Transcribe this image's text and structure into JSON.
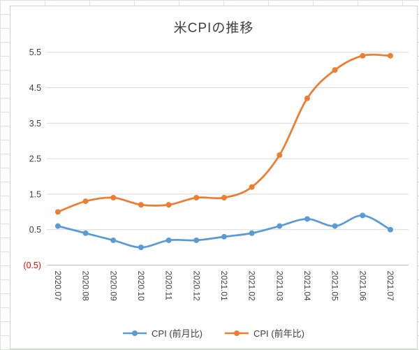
{
  "spreadsheet": {
    "gridline_color": "#d9e2d6"
  },
  "chart_data": {
    "type": "line",
    "title": "米CPIの推移",
    "categories": [
      "2020.07",
      "2020.08",
      "2020.09",
      "2020.10",
      "2020.11",
      "2020.12",
      "2021.01",
      "2021.02",
      "2021.03",
      "2021.04",
      "2021.05",
      "2021.06",
      "2021.07"
    ],
    "series": [
      {
        "name": "CPI (前月比)",
        "color": "#5B9BD5",
        "values": [
          0.6,
          0.4,
          0.2,
          0.0,
          0.2,
          0.2,
          0.3,
          0.4,
          0.6,
          0.8,
          0.6,
          0.9,
          0.5
        ]
      },
      {
        "name": "CPI (前年比)",
        "color": "#ED7D31",
        "values": [
          1.0,
          1.3,
          1.4,
          1.2,
          1.2,
          1.4,
          1.4,
          1.7,
          2.6,
          4.2,
          5.0,
          5.4,
          5.4
        ]
      }
    ],
    "ylim": [
      -0.5,
      5.5
    ],
    "yticks": [
      {
        "value": 5.5,
        "label": "5.5"
      },
      {
        "value": 4.5,
        "label": "4.5"
      },
      {
        "value": 3.5,
        "label": "3.5"
      },
      {
        "value": 2.5,
        "label": "2.5"
      },
      {
        "value": 1.5,
        "label": "1.5"
      },
      {
        "value": 0.5,
        "label": "0.5"
      },
      {
        "value": -0.5,
        "label": "(0.5)",
        "color": "#FF0000"
      }
    ],
    "axis_label_color": "#404040",
    "gridline_color": "#d9d9d9",
    "axis_line_color": "#bfbfbf",
    "grid": true,
    "smoothed": true,
    "marker": "circle",
    "legend_position": "bottom"
  }
}
